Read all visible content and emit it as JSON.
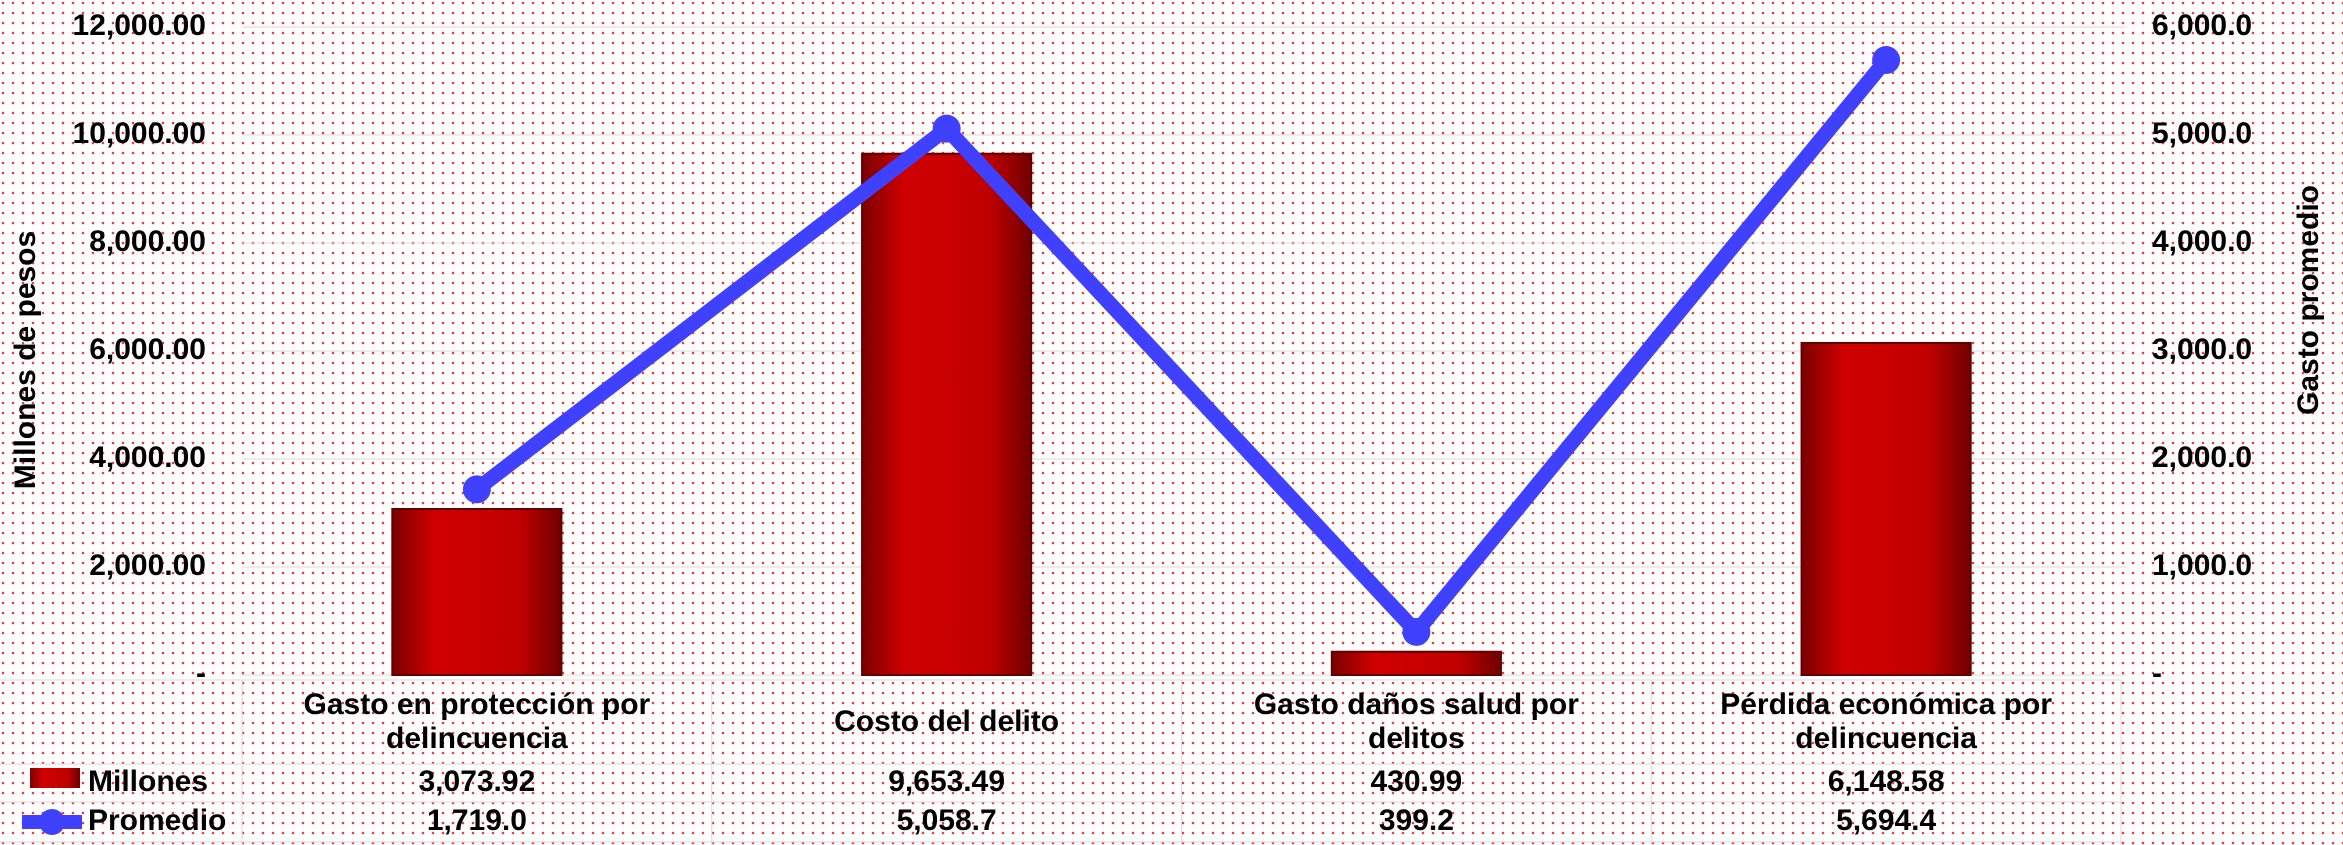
{
  "chart_data": {
    "type": "bar",
    "y_label": "Millones de pesos",
    "y2_label": "Gasto promedio",
    "categories": [
      "Gasto en protección por delincuencia",
      "Costo del delito",
      "Gasto daños salud por delitos",
      "Pérdida económica por delincuencia"
    ],
    "series": [
      {
        "name": "Millones",
        "type": "bar",
        "color": "#c00000",
        "values": [
          3073.92,
          9653.49,
          430.99,
          6148.58
        ],
        "value_labels": [
          "3,073.92",
          "9,653.49",
          "430.99",
          "6,148.58"
        ]
      },
      {
        "name": "Promedio",
        "type": "line",
        "axis": "y2",
        "color": "#4040ff",
        "values": [
          1719.0,
          5058.7,
          399.2,
          5694.4
        ],
        "value_labels": [
          "1,719.0",
          "5,058.7",
          "399.2",
          "5,694.4"
        ]
      }
    ],
    "ylim": [
      0,
      12000
    ],
    "yticks": [
      {
        "value": 0,
        "label": "-"
      },
      {
        "value": 2000,
        "label": "2,000.00"
      },
      {
        "value": 4000,
        "label": "4,000.00"
      },
      {
        "value": 6000,
        "label": "6,000.00"
      },
      {
        "value": 8000,
        "label": "8,000.00"
      },
      {
        "value": 10000,
        "label": "10,000.00"
      },
      {
        "value": 12000,
        "label": "12,000.00"
      }
    ],
    "y2lim": [
      0,
      6000
    ],
    "y2ticks": [
      {
        "value": 0,
        "label": "-"
      },
      {
        "value": 1000,
        "label": "1,000.0"
      },
      {
        "value": 2000,
        "label": "2,000.0"
      },
      {
        "value": 3000,
        "label": "3,000.0"
      },
      {
        "value": 4000,
        "label": "4,000.0"
      },
      {
        "value": 5000,
        "label": "5,000.0"
      },
      {
        "value": 6000,
        "label": "6,000.0"
      }
    ],
    "grid": true,
    "data_table": true
  }
}
